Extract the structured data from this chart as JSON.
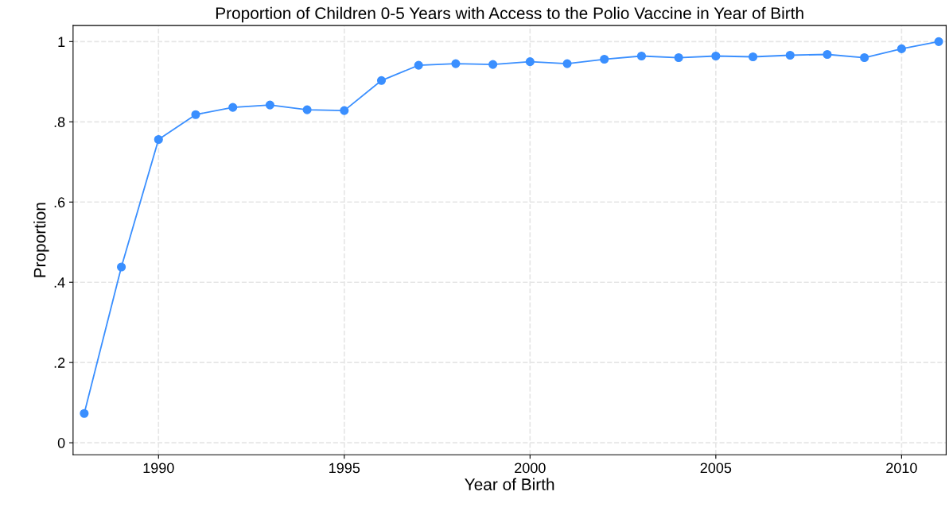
{
  "chart_data": {
    "type": "line",
    "title": "Proportion of Children 0-5 Years with Access to the Polio Vaccine in Year of Birth",
    "xlabel": "Year of Birth",
    "ylabel": "Proportion",
    "x": [
      1988,
      1989,
      1990,
      1991,
      1992,
      1993,
      1994,
      1995,
      1996,
      1997,
      1998,
      1999,
      2000,
      2001,
      2002,
      2003,
      2004,
      2005,
      2006,
      2007,
      2008,
      2009,
      2010,
      2011
    ],
    "series": [
      {
        "color": "#3a8fff",
        "values": [
          0.073,
          0.438,
          0.756,
          0.818,
          0.836,
          0.842,
          0.83,
          0.828,
          0.903,
          0.941,
          0.945,
          0.943,
          0.95,
          0.945,
          0.956,
          0.964,
          0.96,
          0.964,
          0.962,
          0.966,
          0.968,
          0.96,
          0.982,
          1.0
        ]
      }
    ],
    "xlim": [
      1987.7,
      2011.2
    ],
    "ylim": [
      -0.03,
      1.04
    ],
    "xticks": [
      1990,
      1995,
      2000,
      2005,
      2010
    ],
    "yticks": [
      0,
      {
        "value": 0.2,
        "label": ".2"
      },
      {
        "value": 0.4,
        "label": ".4"
      },
      {
        "value": 0.6,
        "label": ".6"
      },
      {
        "value": 0.8,
        "label": ".8"
      },
      1
    ],
    "grid": true,
    "marker": "circle",
    "line_style": "solid"
  }
}
